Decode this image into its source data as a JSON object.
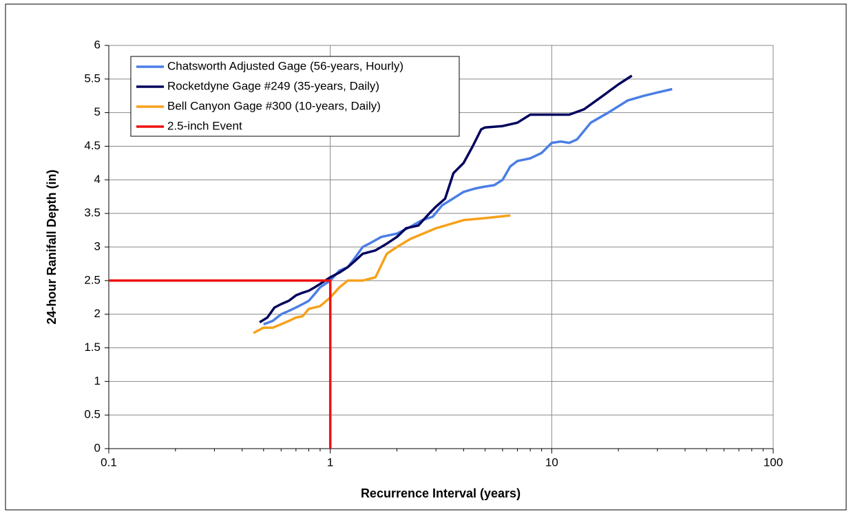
{
  "chart_data": {
    "type": "line",
    "xlabel": "Recurrence Interval (years)",
    "ylabel": "24-hour Ranifall Depth (in)",
    "xscale": "log",
    "xlim": [
      0.1,
      100
    ],
    "xticks": [
      0.1,
      1,
      10,
      100
    ],
    "xminorticks": [
      0.2,
      0.3,
      0.4,
      0.5,
      0.6,
      0.7,
      0.8,
      0.9,
      2,
      3,
      4,
      5,
      6,
      7,
      8,
      9,
      20,
      30,
      40,
      50,
      60,
      70,
      80,
      90
    ],
    "ylim": [
      0,
      6
    ],
    "yticks": [
      0,
      0.5,
      1,
      1.5,
      2,
      2.5,
      3,
      3.5,
      4,
      4.5,
      5,
      5.5,
      6
    ],
    "grid": true,
    "legend": "upper left",
    "series": [
      {
        "name": "Chatsworth Adjusted Gage (56-years, Hourly)",
        "color": "#4a7ee6",
        "x": [
          0.5,
          0.55,
          0.6,
          0.65,
          0.7,
          0.75,
          0.8,
          0.85,
          0.9,
          1.0,
          1.1,
          1.2,
          1.3,
          1.4,
          1.5,
          1.7,
          2.0,
          2.3,
          2.6,
          2.9,
          3.2,
          3.5,
          4.0,
          4.5,
          5.0,
          5.5,
          6.0,
          6.5,
          7.0,
          8.0,
          9.0,
          10,
          11,
          12,
          13,
          15,
          18,
          22,
          26,
          30,
          35
        ],
        "values": [
          1.85,
          1.9,
          2.0,
          2.05,
          2.1,
          2.15,
          2.2,
          2.3,
          2.4,
          2.5,
          2.65,
          2.7,
          2.85,
          3.0,
          3.05,
          3.15,
          3.2,
          3.3,
          3.4,
          3.45,
          3.62,
          3.7,
          3.82,
          3.87,
          3.9,
          3.92,
          4.0,
          4.2,
          4.28,
          4.32,
          4.4,
          4.55,
          4.57,
          4.55,
          4.6,
          4.85,
          5.0,
          5.18,
          5.25,
          5.3,
          5.35
        ]
      },
      {
        "name": "Rocketdyne Gage #249 (35-years, Daily)",
        "color": "#00005e",
        "x": [
          0.48,
          0.52,
          0.56,
          0.6,
          0.65,
          0.7,
          0.75,
          0.8,
          0.85,
          0.9,
          1.0,
          1.1,
          1.2,
          1.3,
          1.4,
          1.6,
          1.8,
          2.0,
          2.2,
          2.5,
          2.8,
          3.0,
          3.3,
          3.6,
          4.0,
          4.4,
          4.8,
          5.0,
          6,
          7,
          8,
          9,
          12,
          14,
          17,
          20,
          23
        ],
        "values": [
          1.88,
          1.95,
          2.1,
          2.15,
          2.2,
          2.28,
          2.32,
          2.35,
          2.4,
          2.45,
          2.55,
          2.62,
          2.7,
          2.8,
          2.9,
          2.95,
          3.05,
          3.15,
          3.28,
          3.32,
          3.5,
          3.6,
          3.72,
          4.1,
          4.25,
          4.5,
          4.75,
          4.78,
          4.8,
          4.85,
          4.97,
          4.97,
          4.97,
          5.05,
          5.25,
          5.42,
          5.55
        ]
      },
      {
        "name": "Bell Canyon Gage #300 (10-years, Daily)",
        "color": "#f7a11a",
        "x": [
          0.45,
          0.5,
          0.55,
          0.6,
          0.65,
          0.7,
          0.75,
          0.8,
          0.9,
          1.0,
          1.1,
          1.2,
          1.4,
          1.6,
          1.8,
          2.0,
          2.3,
          3.0,
          4.0,
          5.0,
          6.5
        ],
        "values": [
          1.72,
          1.8,
          1.8,
          1.85,
          1.9,
          1.95,
          1.97,
          2.08,
          2.12,
          2.25,
          2.4,
          2.5,
          2.5,
          2.55,
          2.9,
          3.0,
          3.12,
          3.28,
          3.4,
          3.43,
          3.47
        ]
      },
      {
        "name": "2.5-inch Event",
        "color": "#ee1111",
        "x": [
          0.1,
          1,
          1
        ],
        "values": [
          2.5,
          2.5,
          0
        ]
      }
    ]
  }
}
